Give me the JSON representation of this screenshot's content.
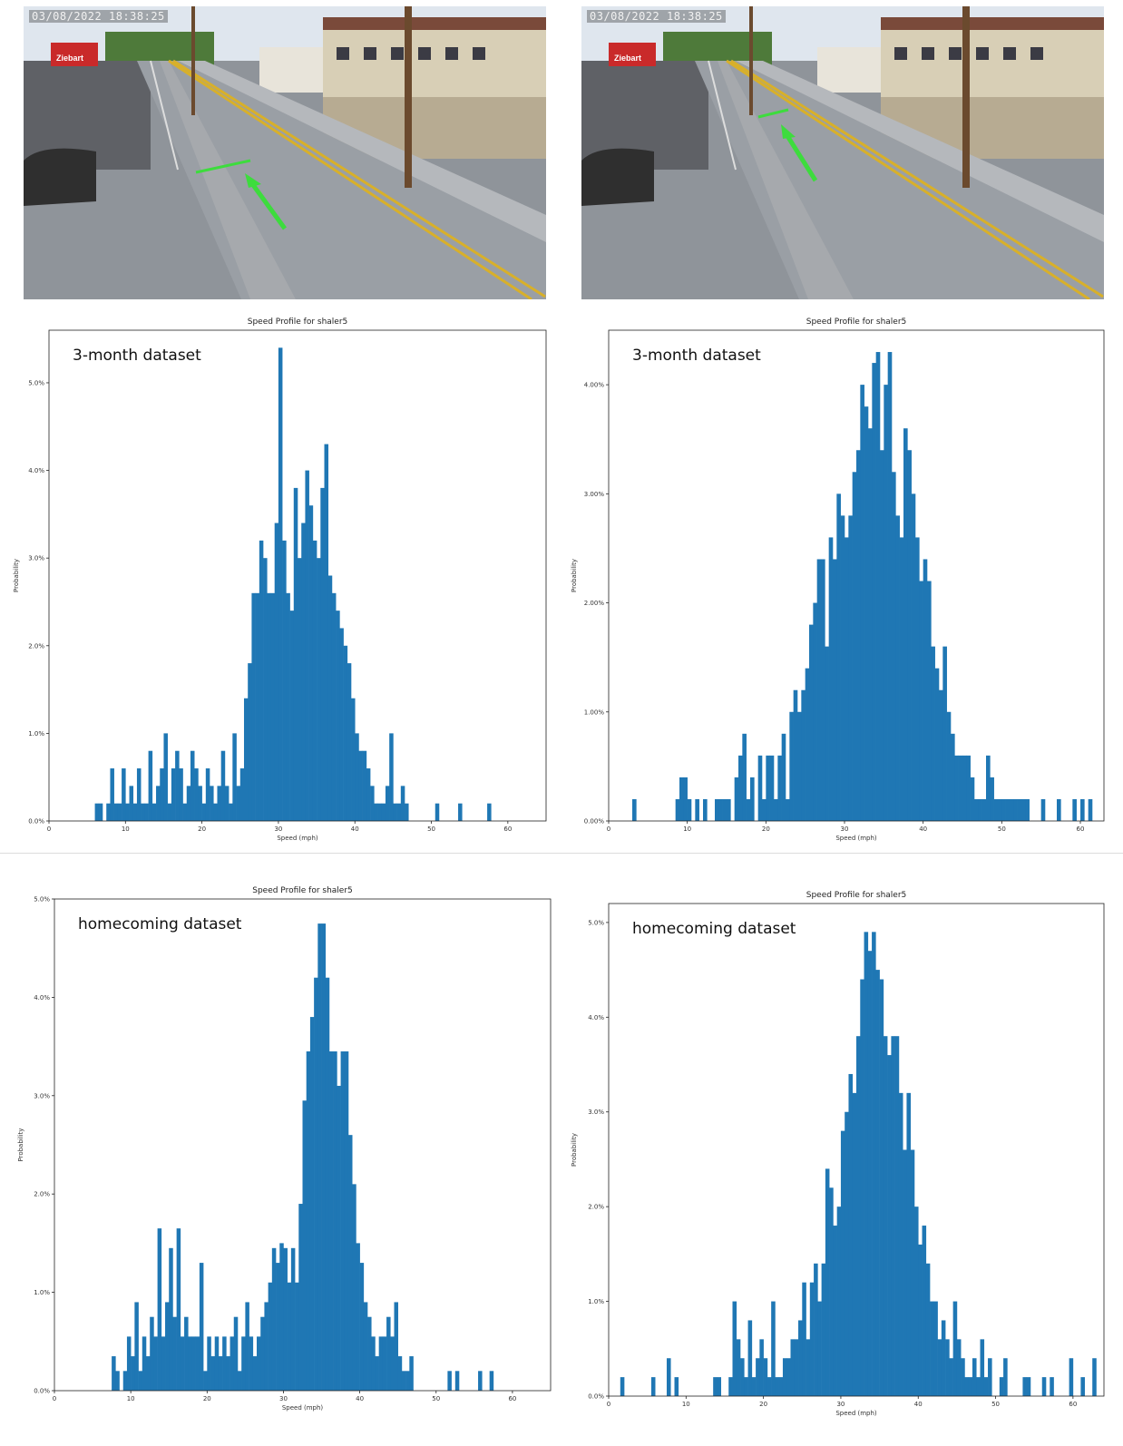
{
  "photos": [
    {
      "timestamp": "03/08/2022 18:38:25",
      "sign": "Ziebart"
    },
    {
      "timestamp": "03/08/2022 18:38:25",
      "sign": "Ziebart"
    }
  ],
  "chart_data": [
    {
      "type": "bar",
      "title": "Speed Profile for shaler5",
      "annotation": "3-month dataset",
      "xlabel": "Speed (mph)",
      "ylabel": "Probability",
      "xlim": [
        0,
        65
      ],
      "ylim": [
        0,
        5.6
      ],
      "xticks": [
        0,
        10,
        20,
        30,
        40,
        50,
        60
      ],
      "yticks": [
        0,
        1,
        2,
        3,
        4,
        5
      ],
      "ytick_labels": [
        "0.0%",
        "1.0%",
        "2.0%",
        "3.0%",
        "4.0%",
        "5.0%"
      ],
      "bin_width": 0.5,
      "x": [
        6,
        6.5,
        7,
        7.5,
        8,
        8.5,
        9,
        9.5,
        10,
        10.5,
        11,
        11.5,
        12,
        12.5,
        13,
        13.5,
        14,
        14.5,
        15,
        15.5,
        16,
        16.5,
        17,
        17.5,
        18,
        18.5,
        19,
        19.5,
        20,
        20.5,
        21,
        21.5,
        22,
        22.5,
        23,
        23.5,
        24,
        24.5,
        25,
        25.5,
        26,
        26.5,
        27,
        27.5,
        28,
        28.5,
        29,
        29.5,
        30,
        30.5,
        31,
        31.5,
        32,
        32.5,
        33,
        33.5,
        34,
        34.5,
        35,
        35.5,
        36,
        36.5,
        37,
        37.5,
        38,
        38.5,
        39,
        39.5,
        40,
        40.5,
        41,
        41.5,
        42,
        42.5,
        43,
        43.5,
        44,
        44.5,
        45,
        45.5,
        46,
        46.5,
        50.5,
        53.5,
        57.3
      ],
      "values": [
        0.2,
        0.2,
        0,
        0.2,
        0.6,
        0.2,
        0.2,
        0.6,
        0.2,
        0.4,
        0.2,
        0.6,
        0.2,
        0.2,
        0.8,
        0.2,
        0.4,
        0.6,
        1.0,
        0.2,
        0.6,
        0.8,
        0.6,
        0.2,
        0.4,
        0.8,
        0.6,
        0.4,
        0.2,
        0.6,
        0.4,
        0.2,
        0.4,
        0.8,
        0.4,
        0.2,
        1.0,
        0.4,
        0.6,
        1.4,
        1.8,
        2.6,
        2.6,
        3.2,
        3.0,
        2.6,
        2.6,
        3.4,
        5.4,
        3.2,
        2.6,
        2.4,
        3.8,
        3.0,
        3.4,
        4.0,
        3.6,
        3.2,
        3.0,
        3.8,
        4.3,
        2.8,
        2.6,
        2.4,
        2.2,
        2.0,
        1.8,
        1.4,
        1.0,
        0.8,
        0.8,
        0.6,
        0.4,
        0.2,
        0.2,
        0.2,
        0.4,
        1.0,
        0.2,
        0.2,
        0.4,
        0.2,
        0.2,
        0.2,
        0.2
      ]
    },
    {
      "type": "bar",
      "title": "Speed Profile for shaler5",
      "annotation": "3-month dataset",
      "xlabel": "Speed (mph)",
      "ylabel": "Probability",
      "xlim": [
        0,
        63
      ],
      "ylim": [
        0,
        4.5
      ],
      "xticks": [
        0,
        10,
        20,
        30,
        40,
        50,
        60
      ],
      "yticks": [
        0,
        1,
        2,
        3,
        4
      ],
      "ytick_labels": [
        "0.00%",
        "1.00%",
        "2.00%",
        "3.00%",
        "4.00%"
      ],
      "bin_width": 0.5,
      "x": [
        3,
        8.5,
        9,
        9.5,
        10,
        10.5,
        11,
        11.5,
        12,
        12.5,
        13,
        13.5,
        14,
        14.5,
        15,
        15.5,
        16,
        16.5,
        17,
        17.5,
        18,
        18.5,
        19,
        19.5,
        20,
        20.5,
        21,
        21.5,
        22,
        22.5,
        23,
        23.5,
        24,
        24.5,
        25,
        25.5,
        26,
        26.5,
        27,
        27.5,
        28,
        28.5,
        29,
        29.5,
        30,
        30.5,
        31,
        31.5,
        32,
        32.5,
        33,
        33.5,
        34,
        34.5,
        35,
        35.5,
        36,
        36.5,
        37,
        37.5,
        38,
        38.5,
        39,
        39.5,
        40,
        40.5,
        41,
        41.5,
        42,
        42.5,
        43,
        43.5,
        44,
        44.5,
        45,
        45.5,
        46,
        46.5,
        47,
        47.5,
        48,
        48.5,
        49,
        49.5,
        50,
        50.5,
        51,
        51.5,
        52,
        52.5,
        53,
        55,
        57,
        59,
        60,
        61
      ],
      "values": [
        0.2,
        0.2,
        0.4,
        0.4,
        0.2,
        0,
        0.2,
        0,
        0.2,
        0,
        0,
        0.2,
        0.2,
        0.2,
        0.2,
        0,
        0.4,
        0.6,
        0.8,
        0.2,
        0.4,
        0,
        0.6,
        0.2,
        0.6,
        0.6,
        0.2,
        0.6,
        0.8,
        0.2,
        1.0,
        1.2,
        1.0,
        1.2,
        1.4,
        1.8,
        2.0,
        2.4,
        2.4,
        1.6,
        2.6,
        2.4,
        3.0,
        2.8,
        2.6,
        2.8,
        3.2,
        3.4,
        4.0,
        3.8,
        3.6,
        4.2,
        4.3,
        3.4,
        4.0,
        4.3,
        3.2,
        2.8,
        2.6,
        3.6,
        3.4,
        3.0,
        2.6,
        2.2,
        2.4,
        2.2,
        1.6,
        1.4,
        1.2,
        1.6,
        1.0,
        0.8,
        0.6,
        0.6,
        0.6,
        0.6,
        0.4,
        0.2,
        0.2,
        0.2,
        0.6,
        0.4,
        0.2,
        0.2,
        0.2,
        0.2,
        0.2,
        0.2,
        0.2,
        0.2,
        0.2,
        0.2,
        0.2,
        0.2,
        0.2,
        0.2
      ]
    },
    {
      "type": "bar",
      "title": "Speed Profile for shaler5",
      "annotation": "homecoming dataset",
      "xlabel": "Speed (mph)",
      "ylabel": "Probability",
      "xlim": [
        0,
        65
      ],
      "ylim": [
        0,
        5.0
      ],
      "xticks": [
        0,
        10,
        20,
        30,
        40,
        50,
        60
      ],
      "yticks": [
        0,
        1,
        2,
        3,
        4,
        5
      ],
      "ytick_labels": [
        "0.0%",
        "1.0%",
        "2.0%",
        "3.0%",
        "4.0%",
        "5.0%"
      ],
      "bin_width": 0.5,
      "x": [
        7.5,
        8,
        8.5,
        9,
        9.5,
        10,
        10.5,
        11,
        11.5,
        12,
        12.5,
        13,
        13.5,
        14,
        14.5,
        15,
        15.5,
        16,
        16.5,
        17,
        17.5,
        18,
        18.5,
        19,
        19.5,
        20,
        20.5,
        21,
        21.5,
        22,
        22.5,
        23,
        23.5,
        24,
        24.5,
        25,
        25.5,
        26,
        26.5,
        27,
        27.5,
        28,
        28.5,
        29,
        29.5,
        30,
        30.5,
        31,
        31.5,
        32,
        32.5,
        33,
        33.5,
        34,
        34.5,
        35,
        35.5,
        36,
        36.5,
        37,
        37.5,
        38,
        38.5,
        39,
        39.5,
        40,
        40.5,
        41,
        41.5,
        42,
        42.5,
        43,
        43.5,
        44,
        44.5,
        45,
        45.5,
        46,
        46.5,
        51.5,
        52.5,
        55.5,
        57
      ],
      "values": [
        0.35,
        0.2,
        0,
        0.2,
        0.55,
        0.35,
        0.9,
        0.2,
        0.55,
        0.35,
        0.75,
        0.55,
        1.65,
        0.55,
        0.9,
        1.45,
        0.75,
        1.65,
        0.55,
        0.75,
        0.55,
        0.55,
        0.55,
        1.3,
        0.2,
        0.55,
        0.35,
        0.55,
        0.35,
        0.55,
        0.35,
        0.55,
        0.75,
        0.2,
        0.55,
        0.9,
        0.55,
        0.35,
        0.55,
        0.75,
        0.9,
        1.1,
        1.45,
        1.3,
        1.5,
        1.45,
        1.1,
        1.45,
        1.1,
        1.9,
        2.95,
        3.45,
        3.8,
        4.2,
        4.75,
        4.75,
        4.2,
        3.45,
        3.45,
        3.1,
        3.45,
        3.45,
        2.6,
        2.1,
        1.5,
        1.3,
        0.9,
        0.75,
        0.55,
        0.35,
        0.55,
        0.55,
        0.75,
        0.55,
        0.9,
        0.35,
        0.2,
        0.2,
        0.35,
        0.2,
        0.2,
        0.2,
        0.2
      ]
    },
    {
      "type": "bar",
      "title": "Speed Profile for shaler5",
      "annotation": "homecoming dataset",
      "xlabel": "Speed (mph)",
      "ylabel": "Probability",
      "xlim": [
        0,
        64
      ],
      "ylim": [
        0,
        5.2
      ],
      "xticks": [
        0,
        10,
        20,
        30,
        40,
        50,
        60
      ],
      "yticks": [
        0,
        1,
        2,
        3,
        4,
        5
      ],
      "ytick_labels": [
        "0.0%",
        "1.0%",
        "2.0%",
        "3.0%",
        "4.0%",
        "5.0%"
      ],
      "bin_width": 0.5,
      "x": [
        1.5,
        5.5,
        7.5,
        8.5,
        13.5,
        14,
        15.5,
        16,
        16.5,
        17,
        17.5,
        18,
        18.5,
        19,
        19.5,
        20,
        20.5,
        21,
        21.5,
        22,
        22.5,
        23,
        23.5,
        24,
        24.5,
        25,
        25.5,
        26,
        26.5,
        27,
        27.5,
        28,
        28.5,
        29,
        29.5,
        30,
        30.5,
        31,
        31.5,
        32,
        32.5,
        33,
        33.5,
        34,
        34.5,
        35,
        35.5,
        36,
        36.5,
        37,
        37.5,
        38,
        38.5,
        39,
        39.5,
        40,
        40.5,
        41,
        41.5,
        42,
        42.5,
        43,
        43.5,
        44,
        44.5,
        45,
        45.5,
        46,
        46.5,
        47,
        47.5,
        48,
        48.5,
        49,
        50.5,
        51,
        53.5,
        54,
        56,
        57,
        59.5,
        61,
        62.5
      ],
      "values": [
        0.2,
        0.2,
        0.4,
        0.2,
        0.2,
        0.2,
        0.2,
        1.0,
        0.6,
        0.4,
        0.2,
        0.8,
        0.2,
        0.4,
        0.6,
        0.4,
        0.2,
        1.0,
        0.2,
        0.2,
        0.4,
        0.4,
        0.6,
        0.6,
        0.8,
        1.2,
        0.6,
        1.2,
        1.4,
        1.0,
        1.4,
        2.4,
        2.2,
        1.8,
        2.0,
        2.8,
        3.0,
        3.4,
        3.2,
        3.8,
        4.4,
        4.9,
        4.7,
        4.9,
        4.5,
        4.4,
        3.8,
        3.6,
        3.8,
        3.8,
        3.2,
        2.6,
        3.2,
        2.6,
        2.0,
        1.6,
        1.8,
        1.4,
        1.0,
        1.0,
        0.6,
        0.8,
        0.6,
        0.4,
        1.0,
        0.6,
        0.4,
        0.2,
        0.2,
        0.4,
        0.2,
        0.6,
        0.2,
        0.4,
        0.2,
        0.4,
        0.2,
        0.2,
        0.2,
        0.2,
        0.4,
        0.2,
        0.4
      ]
    }
  ]
}
